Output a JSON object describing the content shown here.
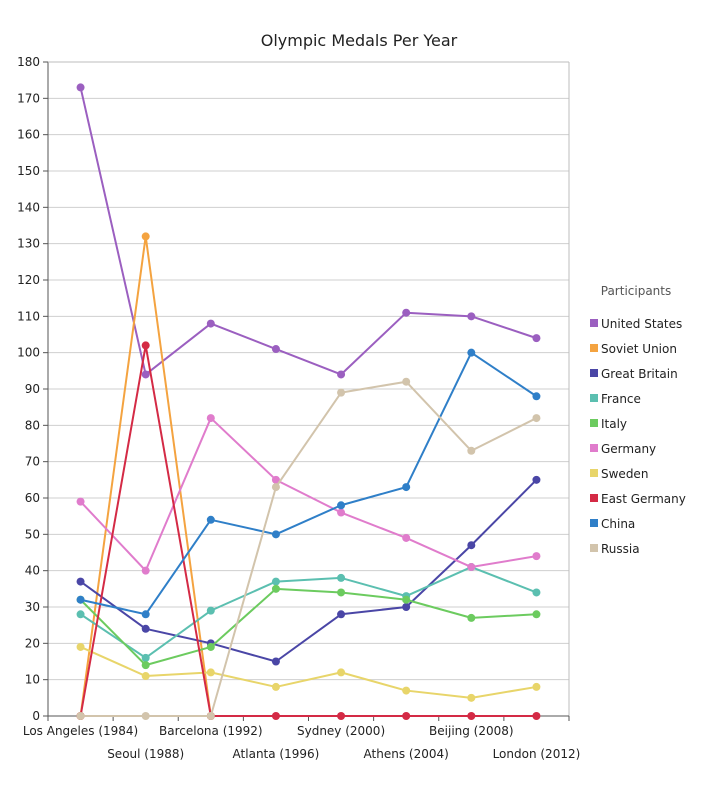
{
  "chart_data": {
    "type": "line",
    "title": "Olympic Medals Per Year",
    "xlabel": "",
    "ylabel": "",
    "ylim": [
      0,
      180
    ],
    "ytick_step": 10,
    "grid": true,
    "legend_title": "Participants",
    "legend_position": "right",
    "categories": [
      "Los Angeles (1984)",
      "Seoul (1988)",
      "Barcelona (1992)",
      "Atlanta (1996)",
      "Sydney (2000)",
      "Athens (2004)",
      "Beijing (2008)",
      "London (2012)"
    ],
    "series": [
      {
        "name": "United States",
        "color": "#9b5fc0",
        "values": [
          173,
          94,
          108,
          101,
          94,
          111,
          110,
          104
        ]
      },
      {
        "name": "Soviet Union",
        "color": "#f4a340",
        "values": [
          0,
          132,
          0,
          null,
          null,
          null,
          null,
          null
        ]
      },
      {
        "name": "Great Britain",
        "color": "#4a46a6",
        "values": [
          37,
          24,
          20,
          15,
          28,
          30,
          47,
          65
        ]
      },
      {
        "name": "France",
        "color": "#5bbfb0",
        "values": [
          28,
          16,
          29,
          37,
          38,
          33,
          41,
          34
        ]
      },
      {
        "name": "Italy",
        "color": "#6ccb5f",
        "values": [
          32,
          14,
          19,
          35,
          34,
          32,
          27,
          28
        ]
      },
      {
        "name": "Germany",
        "color": "#e07ccc",
        "values": [
          59,
          40,
          82,
          65,
          56,
          49,
          41,
          44
        ]
      },
      {
        "name": "Sweden",
        "color": "#e8d56a",
        "values": [
          19,
          11,
          12,
          8,
          12,
          7,
          5,
          8
        ]
      },
      {
        "name": "East Germany",
        "color": "#d42a45",
        "values": [
          0,
          102,
          0,
          0,
          0,
          0,
          0,
          0
        ]
      },
      {
        "name": "China",
        "color": "#2f7fc8",
        "values": [
          32,
          28,
          54,
          50,
          58,
          63,
          100,
          88
        ]
      },
      {
        "name": "Russia",
        "color": "#d2c4ac",
        "values": [
          0,
          0,
          0,
          63,
          89,
          92,
          73,
          82
        ]
      }
    ]
  }
}
